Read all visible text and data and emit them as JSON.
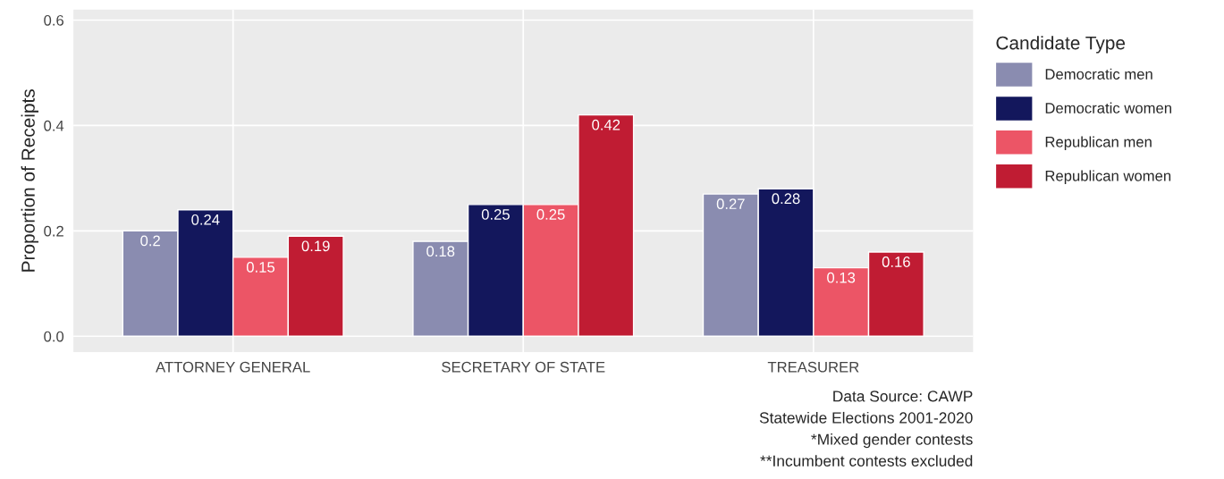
{
  "chart_data": {
    "type": "bar",
    "ylabel": "Proportion of Receipts",
    "legend_title": "Candidate Type",
    "categories": [
      "ATTORNEY GENERAL",
      "SECRETARY OF STATE",
      "TREASURER"
    ],
    "series": [
      {
        "name": "Democratic men",
        "color": "#8a8cb0",
        "values": [
          0.2,
          0.18,
          0.27
        ]
      },
      {
        "name": "Democratic women",
        "color": "#13175c",
        "values": [
          0.24,
          0.25,
          0.28
        ]
      },
      {
        "name": "Republican men",
        "color": "#ec5566",
        "values": [
          0.15,
          0.25,
          0.13
        ]
      },
      {
        "name": "Republican women",
        "color": "#c01c33",
        "values": [
          0.19,
          0.42,
          0.16
        ]
      }
    ],
    "ylim": [
      -0.03,
      0.62
    ],
    "yticks": [
      {
        "value": 0,
        "label": "0.0"
      },
      {
        "value": 0.2,
        "label": "0.2"
      },
      {
        "value": 0.4,
        "label": "0.4"
      },
      {
        "value": 0.6,
        "label": "0.6"
      }
    ],
    "grid": true,
    "legend": "right",
    "data_labels": true,
    "annotations": [
      "Data Source: CAWP",
      "Statewide Elections 2001-2020",
      "*Mixed gender contests",
      "**Incumbent contests excluded"
    ]
  }
}
